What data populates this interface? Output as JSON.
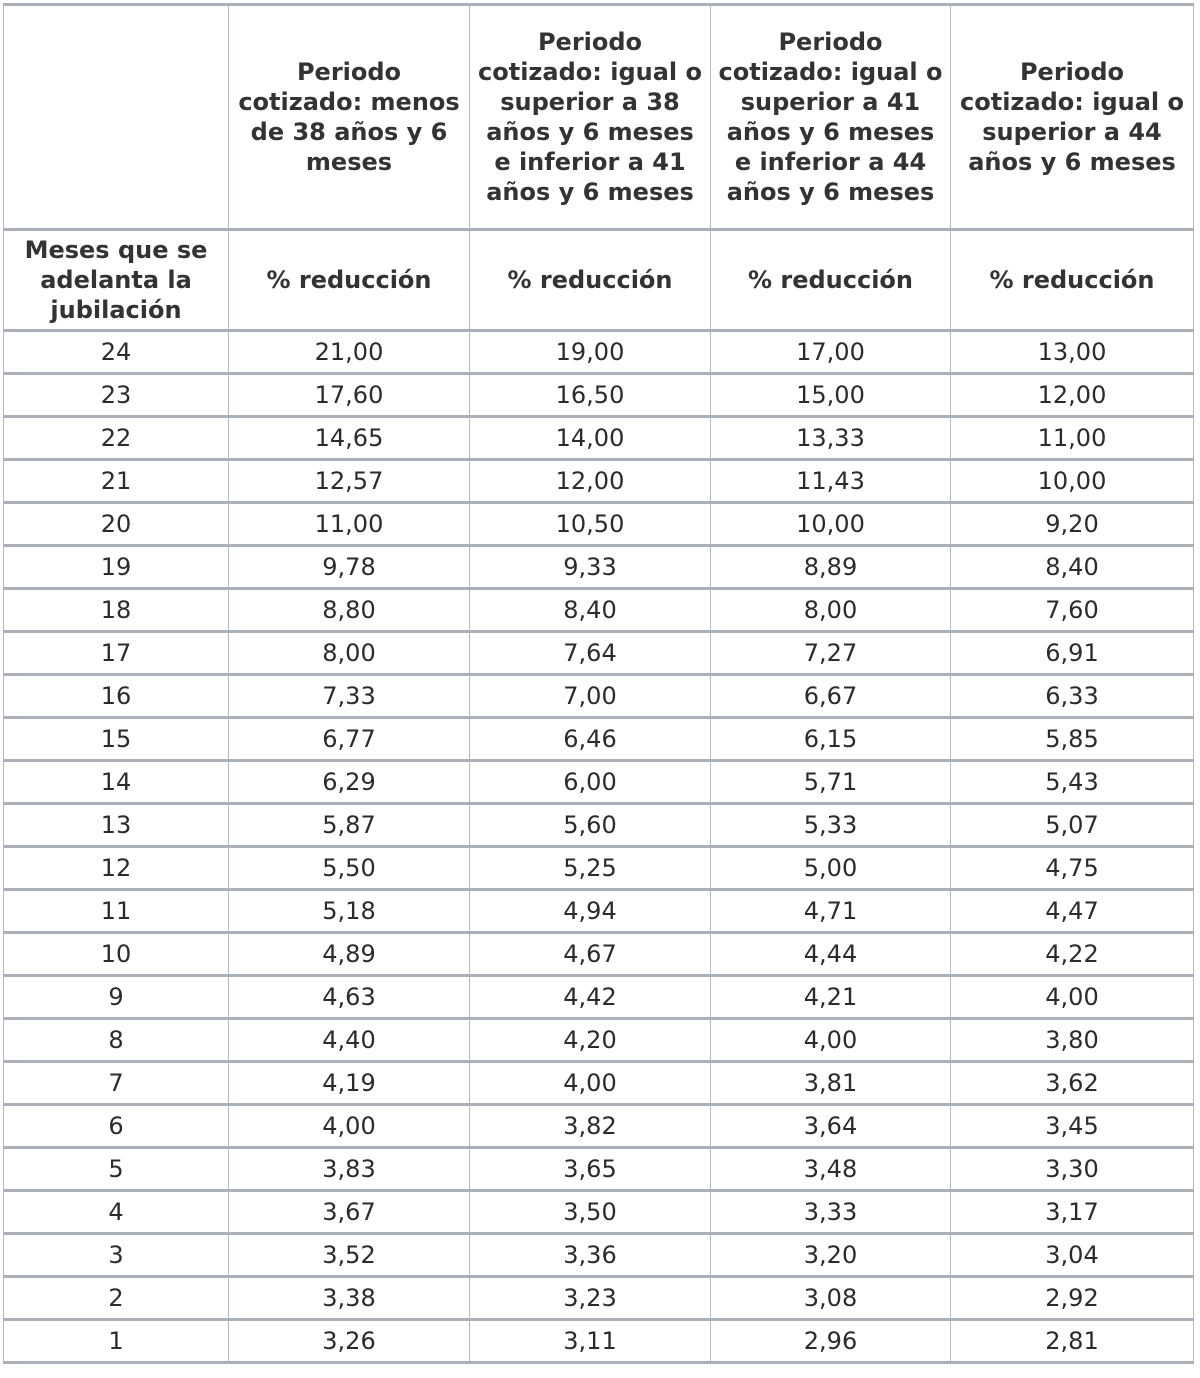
{
  "header": {
    "columns": [
      "",
      "Periodo cotizado: menos de 38 años y 6 meses",
      "Periodo cotizado: igual o superior a 38 años y 6 meses e inferior a 41 años y 6 meses",
      "Periodo cotizado: igual o superior a 41 años y 6 meses e inferior a 44 años y 6 meses",
      "Periodo cotizado: igual o superior a 44 años y 6 meses"
    ],
    "subheaders": [
      "Meses que se adelanta la jubilación",
      "% reducción",
      "% reducción",
      "% reducción",
      "% reducción"
    ]
  },
  "rows": [
    [
      "24",
      "21,00",
      "19,00",
      "17,00",
      "13,00"
    ],
    [
      "23",
      "17,60",
      "16,50",
      "15,00",
      "12,00"
    ],
    [
      "22",
      "14,65",
      "14,00",
      "13,33",
      "11,00"
    ],
    [
      "21",
      "12,57",
      "12,00",
      "11,43",
      "10,00"
    ],
    [
      "20",
      "11,00",
      "10,50",
      "10,00",
      "9,20"
    ],
    [
      "19",
      "9,78",
      "9,33",
      "8,89",
      "8,40"
    ],
    [
      "18",
      "8,80",
      "8,40",
      "8,00",
      "7,60"
    ],
    [
      "17",
      "8,00",
      "7,64",
      "7,27",
      "6,91"
    ],
    [
      "16",
      "7,33",
      "7,00",
      "6,67",
      "6,33"
    ],
    [
      "15",
      "6,77",
      "6,46",
      "6,15",
      "5,85"
    ],
    [
      "14",
      "6,29",
      "6,00",
      "5,71",
      "5,43"
    ],
    [
      "13",
      "5,87",
      "5,60",
      "5,33",
      "5,07"
    ],
    [
      "12",
      "5,50",
      "5,25",
      "5,00",
      "4,75"
    ],
    [
      "11",
      "5,18",
      "4,94",
      "4,71",
      "4,47"
    ],
    [
      "10",
      "4,89",
      "4,67",
      "4,44",
      "4,22"
    ],
    [
      "9",
      "4,63",
      "4,42",
      "4,21",
      "4,00"
    ],
    [
      "8",
      "4,40",
      "4,20",
      "4,00",
      "3,80"
    ],
    [
      "7",
      "4,19",
      "4,00",
      "3,81",
      "3,62"
    ],
    [
      "6",
      "4,00",
      "3,82",
      "3,64",
      "3,45"
    ],
    [
      "5",
      "3,83",
      "3,65",
      "3,48",
      "3,30"
    ],
    [
      "4",
      "3,67",
      "3,50",
      "3,33",
      "3,17"
    ],
    [
      "3",
      "3,52",
      "3,36",
      "3,20",
      "3,04"
    ],
    [
      "2",
      "3,38",
      "3,23",
      "3,08",
      "2,92"
    ],
    [
      "1",
      "3,26",
      "3,11",
      "2,96",
      "2,81"
    ]
  ]
}
